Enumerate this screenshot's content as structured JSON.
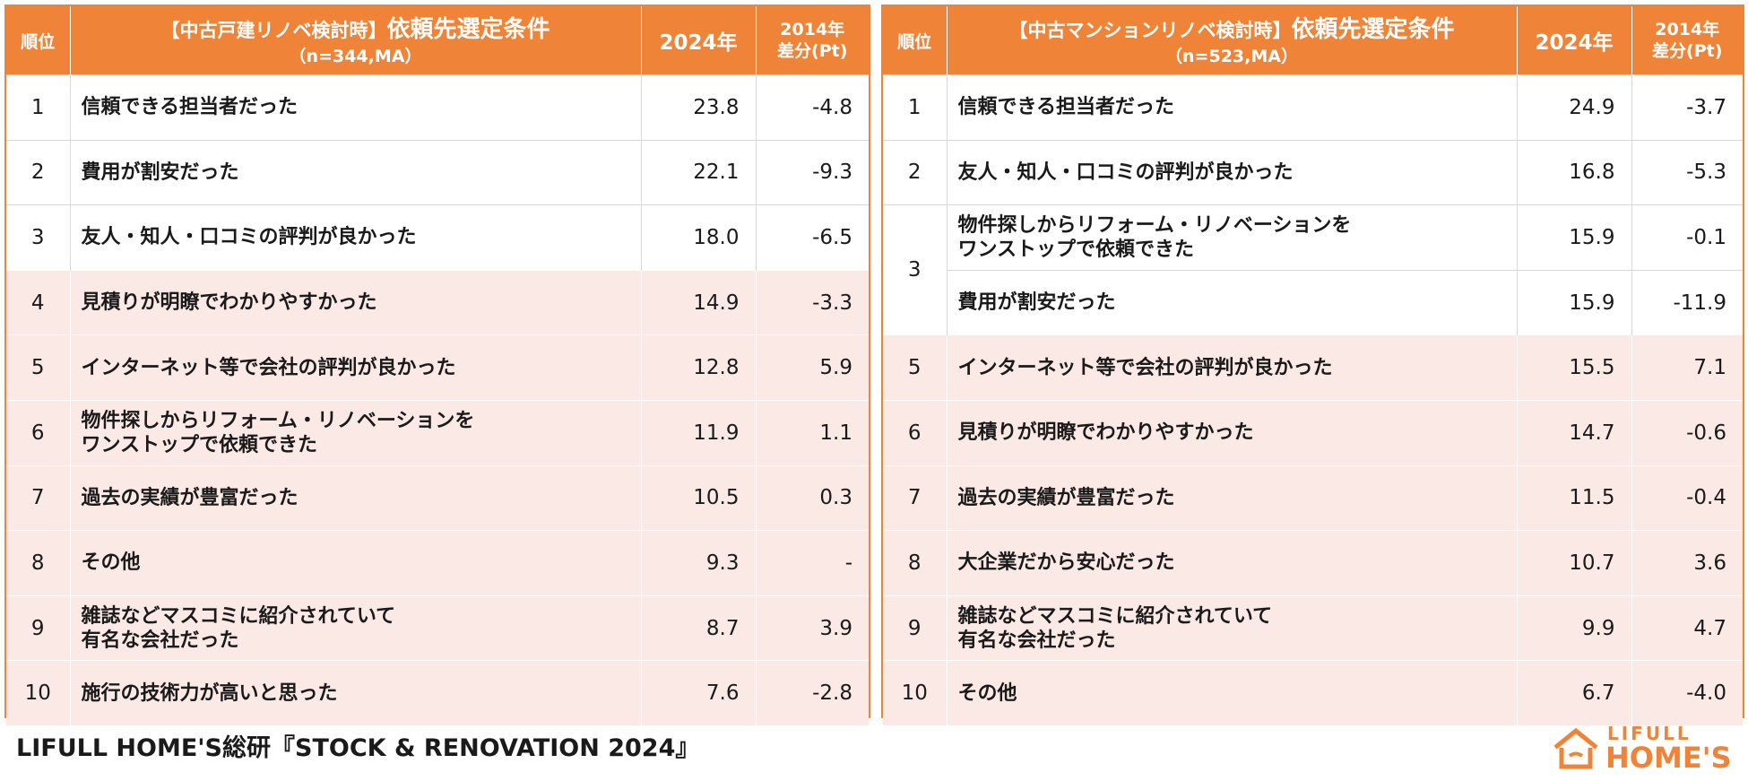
{
  "colors": {
    "accent": "#ef8438",
    "highlight_row": "#fbe9e6",
    "text": "#1a1a1a"
  },
  "left_table": {
    "header": {
      "rank": "順位",
      "title_bracket": "【中古戸建リノベ検討時】",
      "title_main": "依頼先選定条件",
      "subtitle": "（n=344,MA）",
      "col_2024": "2024年",
      "col_diff_line1": "2014年",
      "col_diff_line2": "差分(Pt)"
    },
    "rows": [
      {
        "rank": "1",
        "label": "信頼できる担当者だった",
        "v2024": "23.8",
        "diff": "-4.8"
      },
      {
        "rank": "2",
        "label": "費用が割安だった",
        "v2024": "22.1",
        "diff": "-9.3"
      },
      {
        "rank": "3",
        "label": "友人・知人・口コミの評判が良かった",
        "v2024": "18.0",
        "diff": "-6.5"
      },
      {
        "rank": "4",
        "label": "見積りが明瞭でわかりやすかった",
        "v2024": "14.9",
        "diff": "-3.3"
      },
      {
        "rank": "5",
        "label": "インターネット等で会社の評判が良かった",
        "v2024": "12.8",
        "diff": "5.9"
      },
      {
        "rank": "6",
        "label": "物件探しからリフォーム・リノベーションを\nワンストップで依頼できた",
        "v2024": "11.9",
        "diff": "1.1"
      },
      {
        "rank": "7",
        "label": "過去の実績が豊富だった",
        "v2024": "10.5",
        "diff": "0.3"
      },
      {
        "rank": "8",
        "label": "その他",
        "v2024": "9.3",
        "diff": "-"
      },
      {
        "rank": "9",
        "label": "雑誌などマスコミに紹介されていて\n有名な会社だった",
        "v2024": "8.7",
        "diff": "3.9"
      },
      {
        "rank": "10",
        "label": "施行の技術力が高いと思った",
        "v2024": "7.6",
        "diff": "-2.8"
      }
    ]
  },
  "right_table": {
    "header": {
      "rank": "順位",
      "title_bracket": "【中古マンションリノベ検討時】",
      "title_main": "依頼先選定条件",
      "subtitle": "（n=523,MA）",
      "col_2024": "2024年",
      "col_diff_line1": "2014年",
      "col_diff_line2": "差分(Pt)"
    },
    "rows": [
      {
        "rank": "1",
        "label": "信頼できる担当者だった",
        "v2024": "24.9",
        "diff": "-3.7"
      },
      {
        "rank": "2",
        "label": "友人・知人・口コミの評判が良かった",
        "v2024": "16.8",
        "diff": "-5.3"
      },
      {
        "rank": "3",
        "label": "物件探しからリフォーム・リノベーションを\nワンストップで依頼できた",
        "v2024": "15.9",
        "diff": "-0.1"
      },
      {
        "rank": "",
        "label": "費用が割安だった",
        "v2024": "15.9",
        "diff": "-11.9"
      },
      {
        "rank": "5",
        "label": "インターネット等で会社の評判が良かった",
        "v2024": "15.5",
        "diff": "7.1"
      },
      {
        "rank": "6",
        "label": "見積りが明瞭でわかりやすかった",
        "v2024": "14.7",
        "diff": "-0.6"
      },
      {
        "rank": "7",
        "label": "過去の実績が豊富だった",
        "v2024": "11.5",
        "diff": "-0.4"
      },
      {
        "rank": "8",
        "label": "大企業だから安心だった",
        "v2024": "10.7",
        "diff": "3.6"
      },
      {
        "rank": "9",
        "label": "雑誌などマスコミに紹介されていて\n有名な会社だった",
        "v2024": "9.9",
        "diff": "4.7"
      },
      {
        "rank": "10",
        "label": "その他",
        "v2024": "6.7",
        "diff": "-4.0"
      }
    ]
  },
  "footer": {
    "source": "LIFULL HOME'S総研『STOCK & RENOVATION 2024』",
    "logo_top": "LIFULL",
    "logo_bottom": "HOME'S",
    "logo_icon": "home-logo-icon"
  }
}
